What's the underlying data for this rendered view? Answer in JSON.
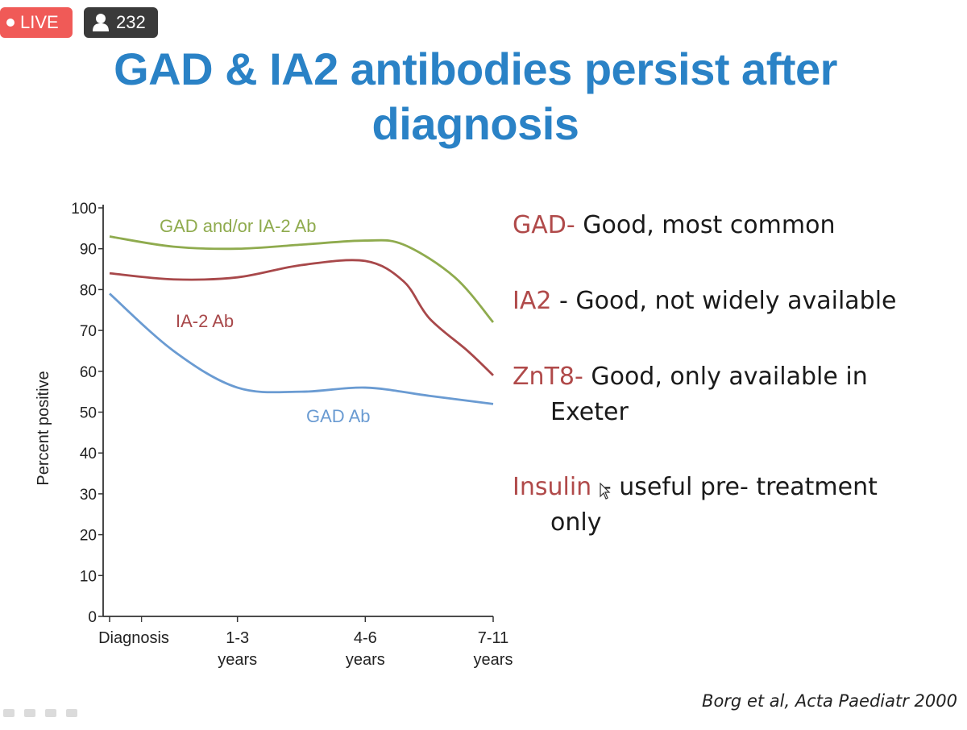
{
  "stream": {
    "live_label": "LIVE",
    "viewer_count": "232",
    "viewer_icon": "person-icon"
  },
  "slide": {
    "title": "GAD & IA2 antibodies persist after diagnosis",
    "citation": "Borg et al, Acta Paediatr 2000"
  },
  "bullets": [
    {
      "key": "GAD-",
      "text": " Good, most common",
      "continuation": ""
    },
    {
      "key": "IA2",
      "text": "  - Good, not widely available",
      "continuation": ""
    },
    {
      "key": "ZnT8-",
      "text": " Good, only available in",
      "continuation": "Exeter"
    },
    {
      "key": "Insulin",
      "text": " – useful pre- treatment",
      "continuation": "only"
    }
  ],
  "colors": {
    "title": "#2a82c6",
    "bullet_key": "#b04a4a",
    "live": "#f05a57",
    "gad_or_ia2": "#8fab4e",
    "ia2": "#a8484a",
    "gad": "#6a9bd2"
  },
  "chart_data": {
    "type": "line",
    "title": "",
    "xlabel": "",
    "ylabel": "Percent positive",
    "ylim": [
      0,
      100
    ],
    "yticks": [
      "0",
      "10",
      "20",
      "30",
      "40",
      "50",
      "60",
      "70",
      "80",
      "90",
      "100"
    ],
    "x_categories": [
      {
        "line1": "Diagnosis",
        "line2": "",
        "x": 0
      },
      {
        "line1": "1-3",
        "line2": "years",
        "x": 1
      },
      {
        "line1": "4-6",
        "line2": "years",
        "x": 2
      },
      {
        "line1": "7-11",
        "line2": "years",
        "x": 3
      }
    ],
    "xlim": [
      0,
      3
    ],
    "grid": false,
    "series": [
      {
        "name": "GAD and/or IA-2 Ab",
        "color": "#8fab4e",
        "points": [
          [
            0,
            93
          ],
          [
            0.5,
            90.5
          ],
          [
            1,
            90
          ],
          [
            1.5,
            91
          ],
          [
            2,
            92
          ],
          [
            2.3,
            91
          ],
          [
            2.7,
            83
          ],
          [
            3,
            72
          ]
        ]
      },
      {
        "name": "IA-2 Ab",
        "color": "#a8484a",
        "points": [
          [
            0,
            84
          ],
          [
            0.5,
            82.5
          ],
          [
            1,
            83
          ],
          [
            1.5,
            86
          ],
          [
            2,
            87
          ],
          [
            2.3,
            82
          ],
          [
            2.5,
            73
          ],
          [
            2.8,
            65
          ],
          [
            3,
            59
          ]
        ]
      },
      {
        "name": "GAD Ab",
        "color": "#6a9bd2",
        "points": [
          [
            0,
            79
          ],
          [
            0.5,
            65
          ],
          [
            1,
            56
          ],
          [
            1.5,
            55
          ],
          [
            2,
            56
          ],
          [
            2.5,
            54
          ],
          [
            3,
            52
          ]
        ]
      }
    ]
  }
}
